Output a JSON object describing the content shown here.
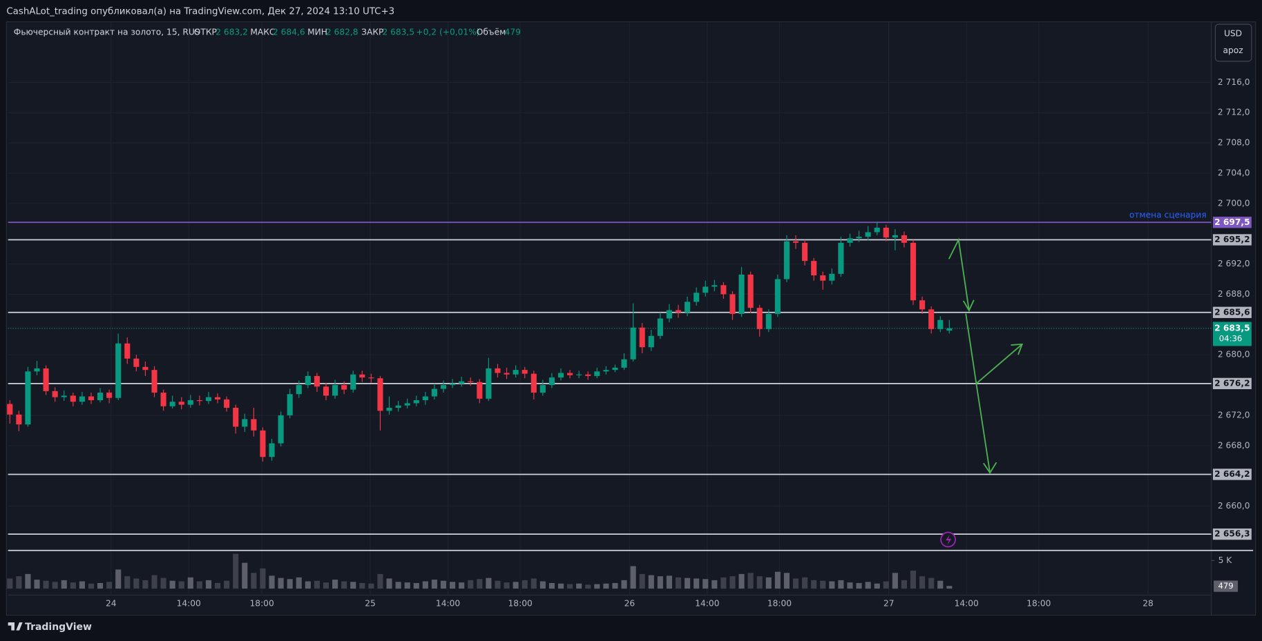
{
  "header": {
    "publisher": "CashALot_trading опубликовал(а) на TradingView.com, Дек 27, 2024 13:10 UTC+3",
    "symbol": "Фьючерсный контракт на золото, 15, RUS",
    "open_label": "ОТКР",
    "open": "2 683,2",
    "high_label": "МАКС",
    "high": "2 684,6",
    "low_label": "МИН",
    "low": "2 682,8",
    "close_label": "ЗАКР",
    "close": "2 683,5",
    "change": "+0,2 (+0,01%)",
    "volume_label": "Объём",
    "volume": "479",
    "currency": "USD",
    "unit": "apoz",
    "footer": "TradingView"
  },
  "chart_data": {
    "type": "candlestick",
    "up_color": "#089981",
    "down_color": "#f23645",
    "volume_up_color": "#5d606b",
    "volume_down_color": "#3e414b",
    "grid": true,
    "ylim": [
      2654.2,
      2724
    ],
    "yticks": [
      {
        "value": 2716,
        "label": "2 716,0"
      },
      {
        "value": 2712,
        "label": "2 712,0"
      },
      {
        "value": 2708,
        "label": "2 708,0"
      },
      {
        "value": 2704,
        "label": "2 704,0"
      },
      {
        "value": 2700,
        "label": "2 700,0"
      },
      {
        "value": 2692,
        "label": "2 692,0"
      },
      {
        "value": 2688,
        "label": "2 688,0"
      },
      {
        "value": 2680,
        "label": "2 680,0"
      },
      {
        "value": 2672,
        "label": "2 672,0"
      },
      {
        "value": 2668,
        "label": "2 668,0"
      },
      {
        "value": 2660,
        "label": "2 660,0"
      }
    ],
    "xlim": [
      -0.2,
      133
    ],
    "xticks": [
      {
        "value": 11.2,
        "label": "24"
      },
      {
        "value": 19.8,
        "label": "14:00"
      },
      {
        "value": 27.9,
        "label": "18:00"
      },
      {
        "value": 39.9,
        "label": "25"
      },
      {
        "value": 48.5,
        "label": "14:00"
      },
      {
        "value": 56.5,
        "label": "18:00"
      },
      {
        "value": 68.6,
        "label": "26"
      },
      {
        "value": 77.2,
        "label": "14:00"
      },
      {
        "value": 85.2,
        "label": "18:00"
      },
      {
        "value": 97.3,
        "label": "27"
      },
      {
        "value": 105.9,
        "label": "14:00"
      },
      {
        "value": 113.9,
        "label": "18:00"
      },
      {
        "value": 126,
        "label": "28"
      }
    ],
    "levels": [
      {
        "value": 2697.5,
        "label": "2 697,5",
        "color": "#7e57c2",
        "note": "отмена сценария"
      },
      {
        "value": 2695.2,
        "label": "2 695,2",
        "color": "#d1d4dc"
      },
      {
        "value": 2685.6,
        "label": "2 685,6",
        "color": "#d1d4dc"
      },
      {
        "value": 2676.2,
        "label": "2 676,2",
        "color": "#d1d4dc"
      },
      {
        "value": 2664.2,
        "label": "2 664,2",
        "color": "#d1d4dc"
      },
      {
        "value": 2656.3,
        "label": "2 656,3",
        "color": "#d1d4dc"
      }
    ],
    "last_price": {
      "value": 2683.5,
      "label": "2 683,5",
      "countdown": "04:36",
      "color": "#089981"
    },
    "ohlc": [
      [
        2673.5,
        2674.0,
        2670.9,
        2672.1
      ],
      [
        2672.1,
        2672.6,
        2669.9,
        2670.8
      ],
      [
        2670.8,
        2678.4,
        2670.5,
        2677.8
      ],
      [
        2677.8,
        2679.2,
        2677.3,
        2678.2
      ],
      [
        2678.2,
        2678.6,
        2674.7,
        2675.2
      ],
      [
        2675.2,
        2675.7,
        2673.8,
        2674.4
      ],
      [
        2674.4,
        2675.3,
        2673.9,
        2674.6
      ],
      [
        2674.6,
        2675.0,
        2673.2,
        2673.8
      ],
      [
        2673.8,
        2675.1,
        2673.4,
        2674.5
      ],
      [
        2674.5,
        2675.0,
        2673.5,
        2674.0
      ],
      [
        2674.0,
        2675.6,
        2673.7,
        2675.0
      ],
      [
        2675.0,
        2675.4,
        2673.6,
        2674.3
      ],
      [
        2674.3,
        2682.8,
        2674.0,
        2681.5
      ],
      [
        2681.5,
        2682.3,
        2678.8,
        2679.5
      ],
      [
        2679.5,
        2680.0,
        2677.8,
        2678.4
      ],
      [
        2678.4,
        2679.1,
        2677.2,
        2678.0
      ],
      [
        2678.0,
        2678.5,
        2674.4,
        2675.0
      ],
      [
        2675.0,
        2675.4,
        2672.6,
        2673.2
      ],
      [
        2673.2,
        2674.6,
        2672.9,
        2673.8
      ],
      [
        2673.8,
        2674.4,
        2672.8,
        2673.4
      ],
      [
        2673.4,
        2674.7,
        2673.0,
        2674.0
      ],
      [
        2674.0,
        2674.6,
        2673.3,
        2673.9
      ],
      [
        2673.9,
        2675.1,
        2673.5,
        2674.4
      ],
      [
        2674.4,
        2674.9,
        2673.6,
        2674.1
      ],
      [
        2674.1,
        2674.5,
        2672.5,
        2673.0
      ],
      [
        2673.0,
        2673.4,
        2669.6,
        2670.5
      ],
      [
        2670.5,
        2672.2,
        2669.8,
        2671.5
      ],
      [
        2671.5,
        2673.0,
        2669.2,
        2670.0
      ],
      [
        2670.0,
        2670.4,
        2665.9,
        2666.5
      ],
      [
        2666.5,
        2668.9,
        2666.0,
        2668.3
      ],
      [
        2668.3,
        2672.5,
        2667.9,
        2672.0
      ],
      [
        2672.0,
        2675.5,
        2671.6,
        2674.8
      ],
      [
        2674.8,
        2676.6,
        2674.3,
        2676.0
      ],
      [
        2676.0,
        2677.8,
        2675.6,
        2677.2
      ],
      [
        2677.2,
        2677.6,
        2675.1,
        2675.8
      ],
      [
        2675.8,
        2676.3,
        2674.0,
        2674.6
      ],
      [
        2674.6,
        2676.7,
        2674.2,
        2676.0
      ],
      [
        2676.0,
        2676.5,
        2674.8,
        2675.4
      ],
      [
        2675.4,
        2677.9,
        2675.0,
        2677.4
      ],
      [
        2677.4,
        2677.9,
        2676.4,
        2677.0
      ],
      [
        2677.0,
        2677.5,
        2676.3,
        2676.9
      ],
      [
        2676.9,
        2677.2,
        2670.0,
        2672.6
      ],
      [
        2672.6,
        2674.5,
        2672.1,
        2673.0
      ],
      [
        2673.0,
        2673.9,
        2672.5,
        2673.3
      ],
      [
        2673.3,
        2674.2,
        2672.9,
        2673.6
      ],
      [
        2673.6,
        2674.6,
        2673.2,
        2674.0
      ],
      [
        2674.0,
        2675.1,
        2673.4,
        2674.5
      ],
      [
        2674.5,
        2676.2,
        2674.1,
        2675.5
      ],
      [
        2675.5,
        2676.6,
        2675.0,
        2676.0
      ],
      [
        2676.0,
        2676.8,
        2675.6,
        2676.2
      ],
      [
        2676.2,
        2677.1,
        2675.8,
        2676.5
      ],
      [
        2676.5,
        2677.0,
        2675.9,
        2676.4
      ],
      [
        2676.4,
        2676.8,
        2673.6,
        2674.2
      ],
      [
        2674.2,
        2679.6,
        2673.9,
        2678.2
      ],
      [
        2678.2,
        2678.8,
        2677.0,
        2677.6
      ],
      [
        2677.6,
        2678.3,
        2676.8,
        2677.4
      ],
      [
        2677.4,
        2678.6,
        2677.0,
        2678.0
      ],
      [
        2678.0,
        2678.4,
        2676.9,
        2677.5
      ],
      [
        2677.5,
        2677.9,
        2674.1,
        2675.0
      ],
      [
        2675.0,
        2676.7,
        2674.6,
        2676.0
      ],
      [
        2676.0,
        2677.6,
        2675.6,
        2677.0
      ],
      [
        2677.0,
        2678.2,
        2676.6,
        2677.6
      ],
      [
        2677.6,
        2678.0,
        2676.9,
        2677.3
      ],
      [
        2677.3,
        2677.9,
        2676.9,
        2677.4
      ],
      [
        2677.4,
        2677.8,
        2676.7,
        2677.2
      ],
      [
        2677.2,
        2678.3,
        2676.9,
        2677.8
      ],
      [
        2677.8,
        2678.5,
        2677.4,
        2678.0
      ],
      [
        2678.0,
        2678.7,
        2677.7,
        2678.3
      ],
      [
        2678.3,
        2680.2,
        2678.0,
        2679.4
      ],
      [
        2679.4,
        2686.8,
        2679.1,
        2683.6
      ],
      [
        2683.6,
        2684.2,
        2680.2,
        2681.0
      ],
      [
        2681.0,
        2683.3,
        2680.5,
        2682.5
      ],
      [
        2682.5,
        2685.6,
        2682.1,
        2684.8
      ],
      [
        2684.8,
        2686.7,
        2684.3,
        2685.9
      ],
      [
        2685.9,
        2686.6,
        2684.9,
        2685.6
      ],
      [
        2685.6,
        2687.7,
        2685.1,
        2687.0
      ],
      [
        2687.0,
        2688.9,
        2686.5,
        2688.2
      ],
      [
        2688.2,
        2689.8,
        2687.7,
        2689.0
      ],
      [
        2689.0,
        2689.9,
        2688.4,
        2689.2
      ],
      [
        2689.2,
        2689.6,
        2687.4,
        2688.0
      ],
      [
        2688.0,
        2688.4,
        2684.6,
        2685.4
      ],
      [
        2685.4,
        2691.6,
        2685.0,
        2690.6
      ],
      [
        2690.6,
        2691.0,
        2685.5,
        2686.2
      ],
      [
        2686.2,
        2686.6,
        2682.4,
        2683.4
      ],
      [
        2683.4,
        2686.0,
        2683.0,
        2685.4
      ],
      [
        2685.4,
        2690.6,
        2685.0,
        2690.0
      ],
      [
        2690.0,
        2695.8,
        2689.6,
        2695.0
      ],
      [
        2695.0,
        2695.8,
        2694.0,
        2694.8
      ],
      [
        2694.8,
        2695.2,
        2691.8,
        2692.4
      ],
      [
        2692.4,
        2692.8,
        2689.8,
        2690.5
      ],
      [
        2690.5,
        2691.0,
        2688.6,
        2689.8
      ],
      [
        2689.8,
        2691.4,
        2689.3,
        2690.7
      ],
      [
        2690.7,
        2695.6,
        2690.3,
        2694.8
      ],
      [
        2694.8,
        2696.0,
        2694.3,
        2695.4
      ],
      [
        2695.4,
        2696.4,
        2694.9,
        2695.6
      ],
      [
        2695.6,
        2697.0,
        2695.1,
        2696.2
      ],
      [
        2696.2,
        2697.6,
        2695.8,
        2696.8
      ],
      [
        2696.8,
        2697.2,
        2695.0,
        2695.5
      ],
      [
        2695.5,
        2696.6,
        2693.8,
        2695.8
      ],
      [
        2695.8,
        2696.3,
        2694.2,
        2694.8
      ],
      [
        2694.8,
        2695.2,
        2686.6,
        2687.2
      ],
      [
        2687.2,
        2687.7,
        2685.4,
        2686.0
      ],
      [
        2686.0,
        2686.4,
        2682.8,
        2683.4
      ],
      [
        2683.4,
        2685.1,
        2683.0,
        2684.6
      ],
      [
        2683.2,
        2684.6,
        2682.8,
        2683.5
      ]
    ],
    "volume": [
      1800,
      2200,
      2600,
      1600,
      1400,
      1200,
      1500,
      1100,
      1300,
      900,
      1000,
      1200,
      3400,
      2200,
      1800,
      1500,
      2400,
      1900,
      1400,
      1300,
      2000,
      1300,
      1500,
      1000,
      1400,
      6200,
      4600,
      2800,
      3600,
      2300,
      1900,
      1700,
      2000,
      1300,
      1400,
      1100,
      1600,
      1300,
      1200,
      1000,
      900,
      2600,
      1800,
      1200,
      1100,
      1000,
      1300,
      1600,
      1400,
      1200,
      1100,
      1500,
      1700,
      1900,
      1400,
      1100,
      1200,
      1500,
      1800,
      1300,
      1000,
      900,
      800,
      900,
      700,
      800,
      900,
      1000,
      1500,
      4000,
      2600,
      2400,
      2200,
      2300,
      2000,
      1900,
      1800,
      1700,
      1500,
      2000,
      2200,
      2600,
      2800,
      2200,
      2000,
      3000,
      2800,
      1800,
      2000,
      1500,
      1400,
      1300,
      1500,
      1100,
      1000,
      1200,
      900,
      1300,
      2800,
      1500,
      3200,
      2200,
      1900,
      1400,
      479
    ],
    "vylim": [
      0,
      6300
    ],
    "vyticks": [
      {
        "value": 5000,
        "label": "5 K"
      }
    ],
    "last_volume_label": "479"
  }
}
